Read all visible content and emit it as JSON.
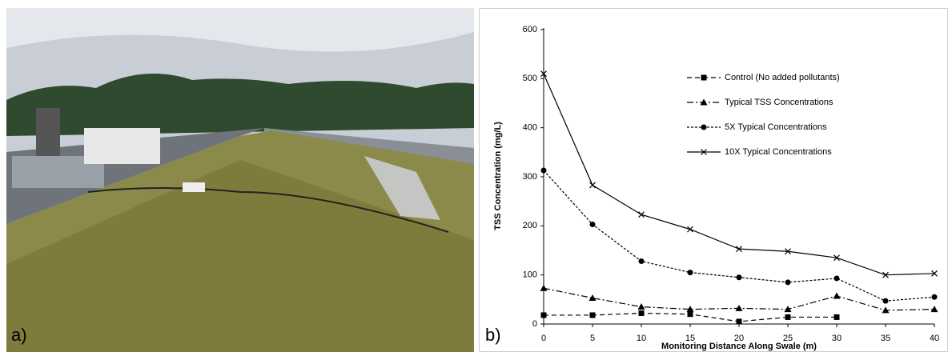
{
  "panel_labels": [
    "a)",
    "b)"
  ],
  "chart_data": {
    "type": "line",
    "ylabel": "TSS Concentration (mg/L)",
    "xlabel": "Monitoring Distance Along Swale (m)",
    "x": [
      0,
      5,
      10,
      15,
      20,
      25,
      30,
      35,
      40
    ],
    "xlim": [
      0,
      40
    ],
    "xticks": [
      0,
      5,
      10,
      15,
      20,
      25,
      30,
      35,
      40
    ],
    "ylim": [
      0,
      600
    ],
    "yticks": [
      0,
      100,
      200,
      300,
      400,
      500,
      600
    ],
    "grid": false,
    "legend": "upper right",
    "series": [
      {
        "name": "Control (No added pollutants)",
        "color": "#000000",
        "marker": "square",
        "dash": "dashed",
        "values": [
          18,
          18,
          22,
          20,
          5,
          14,
          14,
          null,
          null
        ]
      },
      {
        "name": "Typical TSS Concentrations",
        "color": "#000000",
        "marker": "triangle",
        "dash": "dashdot",
        "values": [
          73,
          53,
          35,
          30,
          32,
          30,
          57,
          28,
          30
        ]
      },
      {
        "name": "5X Typical Concentrations",
        "color": "#000000",
        "marker": "circle",
        "dash": "dotted",
        "values": [
          313,
          203,
          128,
          105,
          95,
          85,
          93,
          47,
          55
        ]
      },
      {
        "name": "10X Typical Concentrations",
        "color": "#000000",
        "marker": "x",
        "dash": "solid",
        "values": [
          510,
          283,
          223,
          193,
          153,
          148,
          135,
          100,
          103
        ]
      }
    ]
  }
}
